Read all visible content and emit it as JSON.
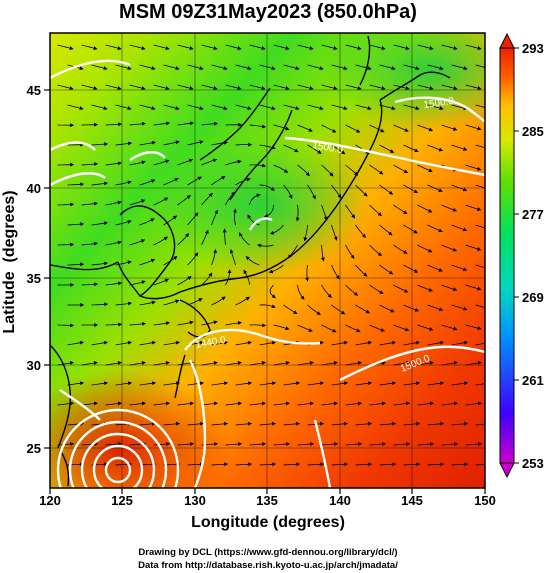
{
  "title": "MSM 09Z31May2023 (850.0hPa)",
  "axes": {
    "x_label": "Longitude (degrees)",
    "y_label": "Latitude  (degrees)",
    "x_range": [
      120,
      150
    ],
    "y_range": [
      22.4,
      47.6
    ],
    "x_ticks": [
      "120",
      "125",
      "130",
      "135",
      "140",
      "145",
      "150"
    ],
    "y_ticks": [
      "25",
      "30",
      "35",
      "40",
      "45"
    ]
  },
  "colorbar": {
    "ticks": [
      "293",
      "285",
      "277",
      "269",
      "261",
      "253"
    ],
    "range": [
      253,
      293
    ],
    "colors": [
      "#cc00cc",
      "#4000ff",
      "#0090ff",
      "#00d8c0",
      "#00e060",
      "#60e000",
      "#d8e800",
      "#ffc000",
      "#ff6000",
      "#ee2200"
    ]
  },
  "contour_labels": [
    "1500.0",
    "1500.0",
    "1440.0",
    "1500.0"
  ],
  "footer": {
    "line1": "Drawing by DCL (https://www.gfd-dennou.org/library/dcl/)",
    "line2": "Data from http://database.rish.kyoto-u.ac.jp/arch/jmadata/"
  }
}
